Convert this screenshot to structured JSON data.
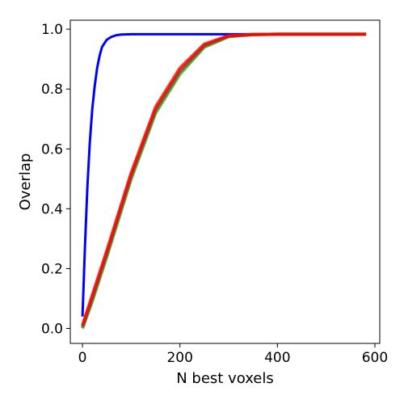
{
  "chart_data": {
    "type": "line",
    "title": "",
    "xlabel": "N best voxels",
    "ylabel": "Overlap",
    "xlim": [
      -25,
      610
    ],
    "ylim": [
      -0.05,
      1.03
    ],
    "xticks": [
      0,
      200,
      400,
      600
    ],
    "xtick_labels": [
      "0",
      "200",
      "400",
      "600"
    ],
    "yticks": [
      0.0,
      0.2,
      0.4,
      0.6,
      0.8,
      1.0
    ],
    "ytick_labels": [
      "0.0",
      "0.2",
      "0.4",
      "0.6",
      "0.8",
      "1.0"
    ],
    "grid": false,
    "legend": "none",
    "series": [
      {
        "color": "#0000ff",
        "x": [
          0,
          5,
          10,
          15,
          20,
          25,
          30,
          35,
          40,
          50,
          60,
          70,
          80,
          100,
          150,
          300,
          582
        ],
        "y": [
          0.04,
          0.27,
          0.47,
          0.62,
          0.73,
          0.81,
          0.87,
          0.91,
          0.94,
          0.965,
          0.975,
          0.98,
          0.982,
          0.983,
          0.983,
          0.983,
          0.983
        ]
      },
      {
        "color": "#2ca02c",
        "x": [
          0,
          20,
          50,
          100,
          150,
          200,
          250,
          300,
          350,
          400,
          500,
          582
        ],
        "y": [
          0.0,
          0.09,
          0.24,
          0.5,
          0.72,
          0.85,
          0.94,
          0.975,
          0.982,
          0.983,
          0.983,
          0.983
        ]
      },
      {
        "color": "#8b4513",
        "x": [
          0,
          20,
          50,
          100,
          150,
          200,
          250,
          300,
          350,
          400,
          500,
          582
        ],
        "y": [
          0.005,
          0.1,
          0.25,
          0.51,
          0.73,
          0.86,
          0.945,
          0.977,
          0.982,
          0.983,
          0.983,
          0.983
        ]
      },
      {
        "color": "#ff0000",
        "x": [
          0,
          20,
          50,
          100,
          150,
          200,
          250,
          300,
          350,
          400,
          500,
          582
        ],
        "y": [
          0.01,
          0.11,
          0.26,
          0.52,
          0.74,
          0.87,
          0.95,
          0.978,
          0.982,
          0.983,
          0.983,
          0.983
        ]
      }
    ]
  }
}
